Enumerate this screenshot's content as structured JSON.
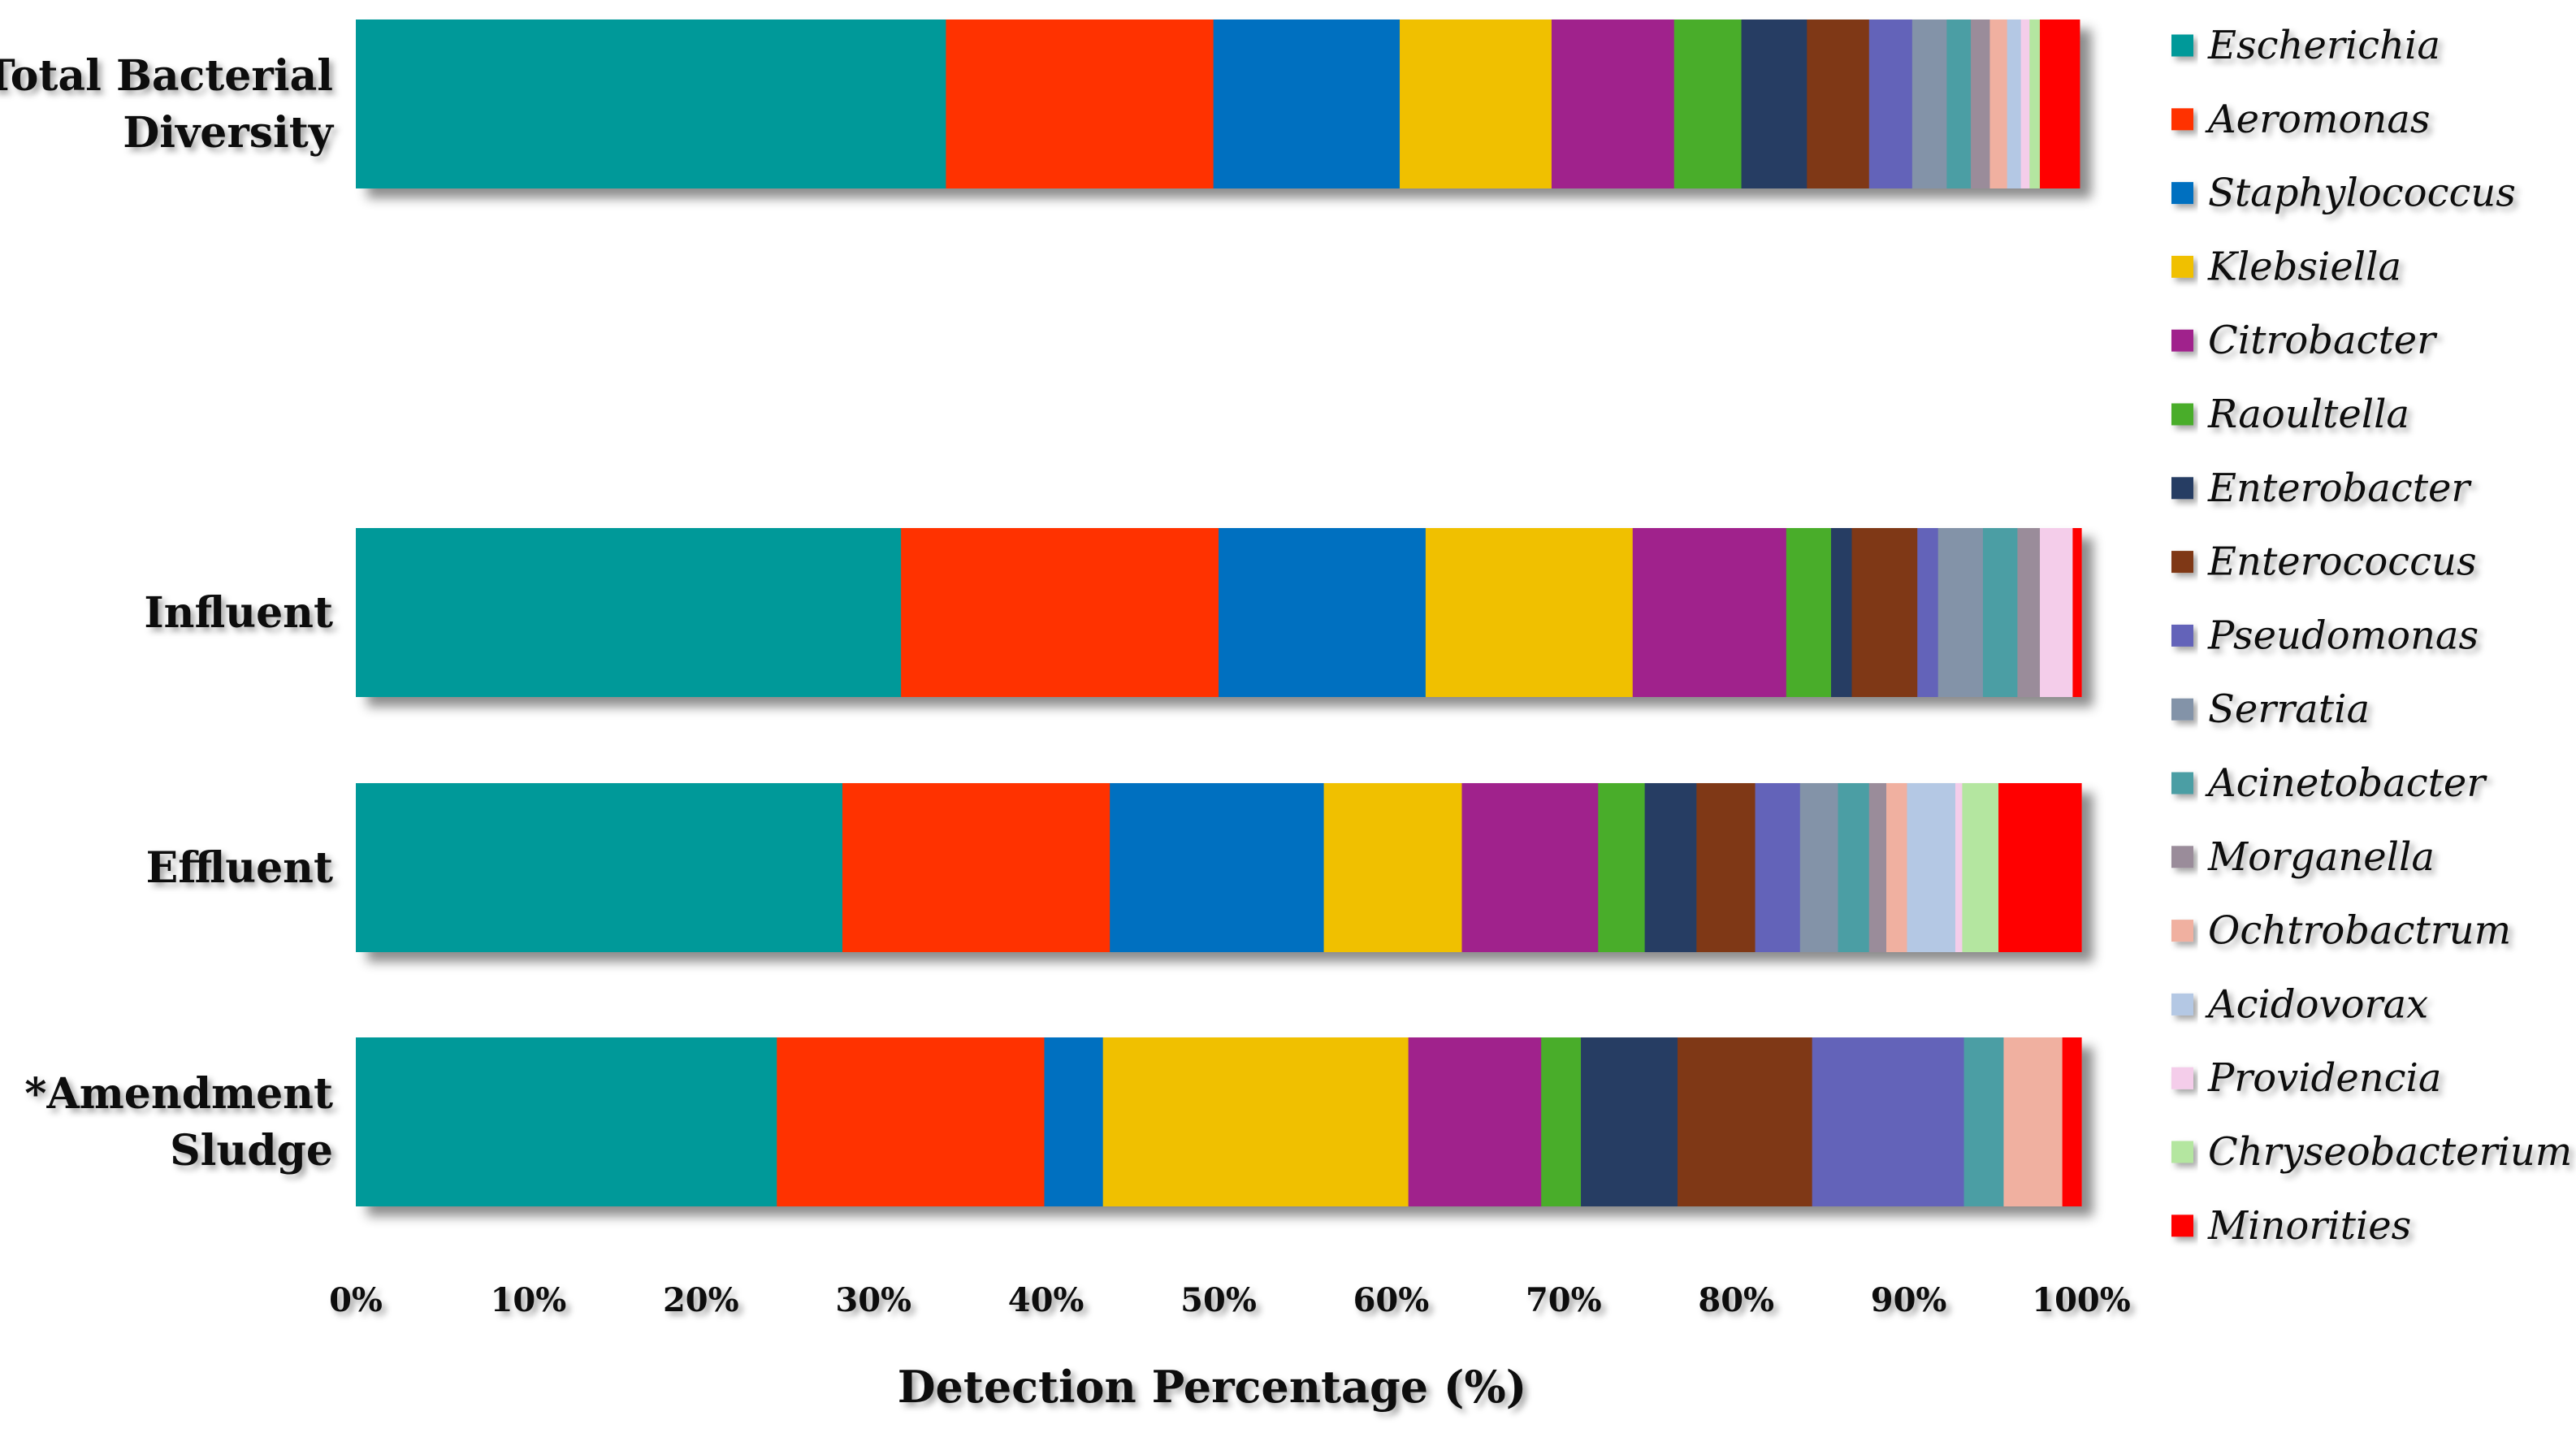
{
  "chart_data": {
    "type": "bar",
    "orientation": "horizontal",
    "stacked": true,
    "xlabel": "Detection Percentage (%)",
    "ylabel": "",
    "xlim": [
      0,
      100
    ],
    "x_ticks": [
      "0%",
      "10%",
      "20%",
      "30%",
      "40%",
      "50%",
      "60%",
      "70%",
      "80%",
      "90%",
      "100%"
    ],
    "grid": false,
    "legend_position": "right",
    "categories": [
      {
        "label": [
          "Total Bacterial",
          "Diversity"
        ]
      },
      {
        "label": [
          "Influent"
        ]
      },
      {
        "label": [
          "Effluent"
        ]
      },
      {
        "label": [
          "*Amendment",
          "Sludge"
        ]
      }
    ],
    "series": [
      {
        "name": "Escherichia",
        "color": "#009999",
        "values": [
          34.2,
          31.6,
          28.2,
          24.4
        ]
      },
      {
        "name": "Aeromonas",
        "color": "#ff3300",
        "values": [
          15.5,
          18.4,
          15.5,
          15.5
        ]
      },
      {
        "name": "Staphylococcus",
        "color": "#0070c0",
        "values": [
          10.8,
          12.0,
          12.4,
          3.4
        ]
      },
      {
        "name": "Klebsiella",
        "color": "#f0c000",
        "values": [
          8.8,
          12.0,
          8.0,
          17.7
        ]
      },
      {
        "name": "Citrobacter",
        "color": "#a0208c",
        "values": [
          7.1,
          8.9,
          7.9,
          7.7
        ]
      },
      {
        "name": "Raoultella",
        "color": "#48ad2c",
        "values": [
          3.9,
          2.6,
          2.7,
          2.3
        ]
      },
      {
        "name": "Enterobacter",
        "color": "#283c64",
        "values": [
          3.8,
          1.2,
          3.0,
          5.6
        ]
      },
      {
        "name": "Enterococcus",
        "color": "#7f3812",
        "values": [
          3.6,
          3.8,
          3.4,
          7.8
        ]
      },
      {
        "name": "Pseudomonas",
        "color": "#6464b9",
        "values": [
          2.5,
          1.2,
          2.6,
          8.8
        ]
      },
      {
        "name": "Serratia",
        "color": "#8393a8",
        "values": [
          2.0,
          2.6,
          2.2,
          0.0
        ]
      },
      {
        "name": "Acinetobacter",
        "color": "#4c9ea4",
        "values": [
          1.4,
          2.0,
          1.8,
          2.3
        ]
      },
      {
        "name": "Morganella",
        "color": "#9a8c9a",
        "values": [
          1.1,
          1.3,
          1.0,
          0.0
        ]
      },
      {
        "name": "Ochtrobactrum",
        "color": "#f0b0a0",
        "values": [
          1.0,
          0.0,
          1.2,
          3.4
        ]
      },
      {
        "name": "Acidovorax",
        "color": "#b4c8e4",
        "values": [
          0.8,
          0.0,
          2.8,
          0.0
        ]
      },
      {
        "name": "Providencia",
        "color": "#f4cdea",
        "values": [
          0.5,
          1.9,
          0.4,
          0.0
        ]
      },
      {
        "name": "Chryseobacterium",
        "color": "#b4e6a0",
        "values": [
          0.6,
          0.0,
          2.1,
          0.0
        ]
      },
      {
        "name": "Minorities",
        "color": "#ff0000",
        "values": [
          2.3,
          0.5,
          4.8,
          1.1
        ]
      }
    ]
  }
}
